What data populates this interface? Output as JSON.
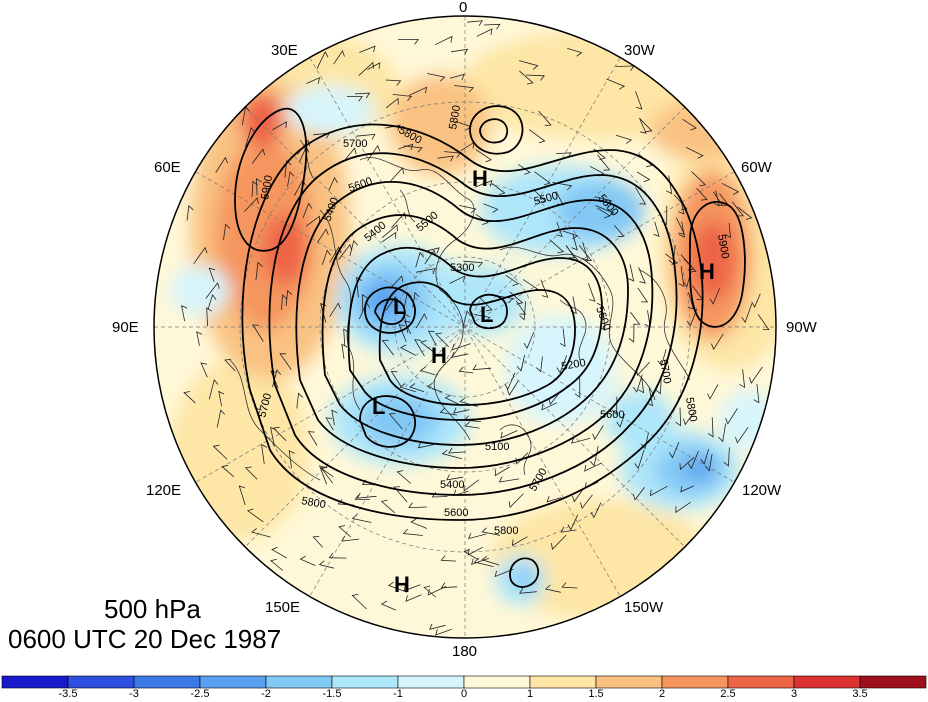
{
  "map": {
    "title_level": "500 hPa",
    "title_time": "0600 UTC 20 Dec 1987",
    "longitude_labels": {
      "top": "0",
      "bottom": "180",
      "left": "90E",
      "right": "90W",
      "l30": "30E",
      "l60": "60E",
      "l120": "120E",
      "l150": "150E",
      "r30": "30W",
      "r60": "60W",
      "r120": "120W",
      "r150": "150W"
    },
    "contour_labels": [
      "5800",
      "5800",
      "5700",
      "5600",
      "5500",
      "5400",
      "5300",
      "5200",
      "5600",
      "5700",
      "5800",
      "5900",
      "5900",
      "5600",
      "5600",
      "5700",
      "5400",
      "5600",
      "5800",
      "5100",
      "5700",
      "5800",
      "5400",
      "5500"
    ],
    "pressure_centers": [
      "H",
      "H",
      "H",
      "H",
      "L",
      "L",
      "L"
    ],
    "colorbar": {
      "ticks": [
        "-3.5",
        "-3",
        "-2.5",
        "-2",
        "-1.5",
        "-1",
        "0",
        "1",
        "1.5",
        "2",
        "2.5",
        "3",
        "3.5"
      ],
      "colors": [
        "#1a1acd",
        "#2d50e0",
        "#3c78e6",
        "#5aa0f0",
        "#82c8f5",
        "#aee6fa",
        "#d7f5fc",
        "#fff8d8",
        "#fde6a6",
        "#f9c282",
        "#f5965f",
        "#ee6446",
        "#dc3232",
        "#a00f1e"
      ]
    }
  }
}
